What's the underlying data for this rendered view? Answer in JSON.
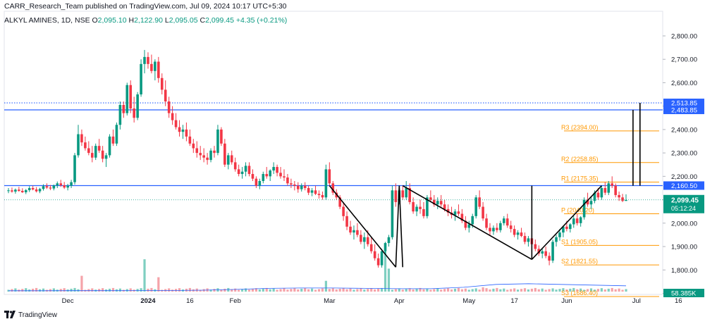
{
  "header": {
    "published": "CARR_Research_Team published on TradingView.com, Jul 09, 2024 10:17 UTC+5:30",
    "symbol": "ALKYL AMINES, 1D, NSE",
    "ohlc": [
      {
        "k": "O",
        "v": "2,095.10"
      },
      {
        "k": "H",
        "v": "2,122.90"
      },
      {
        "k": "L",
        "v": "2,095.05"
      },
      {
        "k": "C",
        "v": "2,099.45"
      }
    ],
    "change": "+4.35 (+0.21%)"
  },
  "footer": {
    "brand": "TradingView"
  },
  "colors": {
    "up": "#089981",
    "down": "#f23645",
    "level": "#2962ff",
    "pivot": "#ff9800",
    "volume_ma": "#2962ff",
    "vol_up": "#7fcfc1",
    "vol_down": "#f5a3a9"
  },
  "chart_data": {
    "type": "candlestick",
    "ylim": [
      1610,
      2830
    ],
    "y_ticks": [
      "2,800.00",
      "2,700.00",
      "2,600.00",
      "2,500.00",
      "2,400.00",
      "2,300.00",
      "2,200.00",
      "2,100.00",
      "2,000.00",
      "1,900.00",
      "1,800.00",
      "1,700.00"
    ],
    "y_tick_values": [
      2800,
      2700,
      2600,
      2500,
      2400,
      2300,
      2200,
      2100,
      2000,
      1900,
      1800,
      1700
    ],
    "x_ticks": [
      "Dec",
      "2024",
      "16",
      "Feb",
      "Mar",
      "Apr",
      "May",
      "17",
      "Jun",
      "Jul",
      "16"
    ],
    "x_tick_bars": [
      17,
      40,
      52,
      65,
      92,
      112,
      132,
      145,
      160,
      180,
      192
    ],
    "candles": [
      [
        2138,
        2150,
        2128,
        2140
      ],
      [
        2140,
        2152,
        2130,
        2135
      ],
      [
        2135,
        2148,
        2126,
        2143
      ],
      [
        2143,
        2155,
        2134,
        2138
      ],
      [
        2138,
        2149,
        2129,
        2132
      ],
      [
        2132,
        2146,
        2124,
        2141
      ],
      [
        2141,
        2158,
        2133,
        2150
      ],
      [
        2150,
        2160,
        2140,
        2144
      ],
      [
        2144,
        2154,
        2131,
        2136
      ],
      [
        2136,
        2151,
        2128,
        2146
      ],
      [
        2146,
        2166,
        2139,
        2158
      ],
      [
        2158,
        2170,
        2146,
        2152
      ],
      [
        2152,
        2163,
        2141,
        2148
      ],
      [
        2148,
        2165,
        2140,
        2161
      ],
      [
        2161,
        2178,
        2150,
        2170
      ],
      [
        2170,
        2185,
        2155,
        2162
      ],
      [
        2162,
        2176,
        2146,
        2152
      ],
      [
        2152,
        2168,
        2140,
        2160
      ],
      [
        2160,
        2185,
        2150,
        2175
      ],
      [
        2175,
        2300,
        2165,
        2290
      ],
      [
        2290,
        2420,
        2280,
        2380
      ],
      [
        2380,
        2400,
        2330,
        2345
      ],
      [
        2345,
        2370,
        2310,
        2320
      ],
      [
        2320,
        2350,
        2290,
        2300
      ],
      [
        2300,
        2330,
        2260,
        2280
      ],
      [
        2280,
        2340,
        2270,
        2330
      ],
      [
        2330,
        2360,
        2300,
        2310
      ],
      [
        2310,
        2330,
        2260,
        2275
      ],
      [
        2275,
        2300,
        2240,
        2290
      ],
      [
        2290,
        2380,
        2280,
        2370
      ],
      [
        2370,
        2400,
        2330,
        2340
      ],
      [
        2340,
        2430,
        2330,
        2420
      ],
      [
        2420,
        2520,
        2400,
        2505
      ],
      [
        2505,
        2520,
        2450,
        2470
      ],
      [
        2470,
        2600,
        2460,
        2590
      ],
      [
        2590,
        2610,
        2470,
        2490
      ],
      [
        2490,
        2540,
        2430,
        2450
      ],
      [
        2450,
        2560,
        2440,
        2550
      ],
      [
        2550,
        2700,
        2540,
        2680
      ],
      [
        2680,
        2740,
        2640,
        2710
      ],
      [
        2710,
        2730,
        2660,
        2680
      ],
      [
        2680,
        2720,
        2640,
        2650
      ],
      [
        2650,
        2700,
        2610,
        2690
      ],
      [
        2690,
        2710,
        2600,
        2620
      ],
      [
        2620,
        2640,
        2550,
        2570
      ],
      [
        2570,
        2610,
        2500,
        2520
      ],
      [
        2520,
        2540,
        2450,
        2470
      ],
      [
        2470,
        2500,
        2420,
        2440
      ],
      [
        2440,
        2470,
        2400,
        2410
      ],
      [
        2410,
        2440,
        2370,
        2390
      ],
      [
        2390,
        2420,
        2360,
        2400
      ],
      [
        2400,
        2430,
        2350,
        2370
      ],
      [
        2370,
        2400,
        2330,
        2340
      ],
      [
        2340,
        2360,
        2300,
        2320
      ],
      [
        2320,
        2350,
        2280,
        2300
      ],
      [
        2300,
        2330,
        2270,
        2290
      ],
      [
        2290,
        2320,
        2260,
        2280
      ],
      [
        2280,
        2300,
        2250,
        2270
      ],
      [
        2270,
        2320,
        2260,
        2310
      ],
      [
        2310,
        2330,
        2280,
        2300
      ],
      [
        2300,
        2420,
        2290,
        2400
      ],
      [
        2400,
        2410,
        2330,
        2340
      ],
      [
        2340,
        2360,
        2240,
        2250
      ],
      [
        2250,
        2300,
        2230,
        2290
      ],
      [
        2290,
        2310,
        2250,
        2260
      ],
      [
        2260,
        2280,
        2220,
        2230
      ],
      [
        2230,
        2250,
        2200,
        2210
      ],
      [
        2210,
        2240,
        2190,
        2220
      ],
      [
        2220,
        2260,
        2200,
        2245
      ],
      [
        2245,
        2260,
        2200,
        2210
      ],
      [
        2210,
        2230,
        2180,
        2190
      ],
      [
        2190,
        2200,
        2150,
        2160
      ],
      [
        2160,
        2190,
        2145,
        2180
      ],
      [
        2180,
        2220,
        2170,
        2210
      ],
      [
        2210,
        2240,
        2190,
        2200
      ],
      [
        2200,
        2230,
        2180,
        2225
      ],
      [
        2225,
        2260,
        2210,
        2240
      ],
      [
        2240,
        2250,
        2200,
        2215
      ],
      [
        2215,
        2240,
        2190,
        2200
      ],
      [
        2200,
        2230,
        2180,
        2195
      ],
      [
        2195,
        2210,
        2160,
        2170
      ],
      [
        2170,
        2190,
        2150,
        2165
      ],
      [
        2165,
        2180,
        2140,
        2160
      ],
      [
        2160,
        2175,
        2130,
        2145
      ],
      [
        2145,
        2170,
        2135,
        2160
      ],
      [
        2160,
        2175,
        2140,
        2150
      ],
      [
        2150,
        2160,
        2120,
        2130
      ],
      [
        2130,
        2150,
        2115,
        2140
      ],
      [
        2140,
        2160,
        2120,
        2125
      ],
      [
        2125,
        2140,
        2105,
        2120
      ],
      [
        2120,
        2135,
        2100,
        2110
      ],
      [
        2110,
        2250,
        2100,
        2230
      ],
      [
        2230,
        2260,
        2160,
        2170
      ],
      [
        2170,
        2180,
        2120,
        2130
      ],
      [
        2130,
        2145,
        2100,
        2110
      ],
      [
        2110,
        2120,
        2060,
        2070
      ],
      [
        2070,
        2090,
        2010,
        2030
      ],
      [
        2030,
        2050,
        1970,
        1985
      ],
      [
        1985,
        2010,
        1950,
        1960
      ],
      [
        1960,
        1990,
        1930,
        1970
      ],
      [
        1970,
        2000,
        1940,
        1950
      ],
      [
        1950,
        1970,
        1910,
        1920
      ],
      [
        1920,
        1960,
        1890,
        1940
      ],
      [
        1940,
        1970,
        1900,
        1910
      ],
      [
        1910,
        1940,
        1870,
        1880
      ],
      [
        1880,
        1910,
        1840,
        1850
      ],
      [
        1850,
        1870,
        1810,
        1820
      ],
      [
        1820,
        1890,
        1810,
        1880
      ],
      [
        1880,
        1920,
        1870,
        1915
      ],
      [
        1915,
        1950,
        1900,
        1940
      ],
      [
        1940,
        2160,
        1930,
        2140
      ],
      [
        2140,
        2170,
        2070,
        2090
      ],
      [
        2090,
        2150,
        2080,
        2140
      ],
      [
        2140,
        2160,
        2100,
        2110
      ],
      [
        2110,
        2180,
        2100,
        2150
      ],
      [
        2150,
        2170,
        2080,
        2090
      ],
      [
        2090,
        2110,
        2040,
        2050
      ],
      [
        2050,
        2080,
        2030,
        2070
      ],
      [
        2070,
        2100,
        2040,
        2060
      ],
      [
        2060,
        2090,
        2020,
        2030
      ],
      [
        2030,
        2120,
        2020,
        2110
      ],
      [
        2110,
        2140,
        2090,
        2100
      ],
      [
        2100,
        2120,
        2070,
        2080
      ],
      [
        2080,
        2110,
        2060,
        2095
      ],
      [
        2095,
        2120,
        2070,
        2080
      ],
      [
        2080,
        2100,
        2050,
        2060
      ],
      [
        2060,
        2080,
        2030,
        2045
      ],
      [
        2045,
        2070,
        2020,
        2035
      ],
      [
        2035,
        2060,
        2010,
        2050
      ],
      [
        2050,
        2080,
        2030,
        2040
      ],
      [
        2040,
        2060,
        2000,
        2010
      ],
      [
        2010,
        2030,
        1970,
        1980
      ],
      [
        1980,
        2010,
        1960,
        1995
      ],
      [
        1995,
        2040,
        1980,
        2030
      ],
      [
        2030,
        2120,
        2020,
        2110
      ],
      [
        2110,
        2140,
        2060,
        2070
      ],
      [
        2070,
        2090,
        2010,
        2020
      ],
      [
        2020,
        2040,
        1970,
        1980
      ],
      [
        1980,
        2000,
        1950,
        1965
      ],
      [
        1965,
        1990,
        1950,
        1980
      ],
      [
        1980,
        2000,
        1960,
        1970
      ],
      [
        1970,
        2010,
        1960,
        2000
      ],
      [
        2000,
        2030,
        1990,
        2020
      ],
      [
        2020,
        2040,
        1980,
        1990
      ],
      [
        1990,
        2010,
        1960,
        1975
      ],
      [
        1975,
        1990,
        1940,
        1950
      ],
      [
        1950,
        1970,
        1930,
        1960
      ],
      [
        1960,
        1980,
        1940,
        1945
      ],
      [
        1945,
        1960,
        1910,
        1920
      ],
      [
        1920,
        1945,
        1900,
        1935
      ],
      [
        1935,
        1950,
        1900,
        1910
      ],
      [
        1910,
        1930,
        1880,
        1890
      ],
      [
        1890,
        1905,
        1860,
        1870
      ],
      [
        1870,
        1895,
        1850,
        1880
      ],
      [
        1880,
        1900,
        1850,
        1860
      ],
      [
        1860,
        1875,
        1820,
        1840
      ],
      [
        1840,
        1930,
        1830,
        1920
      ],
      [
        1920,
        1950,
        1900,
        1940
      ],
      [
        1940,
        1975,
        1925,
        1960
      ],
      [
        1960,
        1990,
        1940,
        1985
      ],
      [
        1985,
        2010,
        1965,
        1975
      ],
      [
        1975,
        2000,
        1960,
        1995
      ],
      [
        1995,
        2030,
        1980,
        2020
      ],
      [
        2020,
        2040,
        1990,
        2000
      ],
      [
        2000,
        2030,
        1985,
        2025
      ],
      [
        2025,
        2110,
        2015,
        2100
      ],
      [
        2100,
        2130,
        2070,
        2080
      ],
      [
        2080,
        2110,
        2060,
        2095
      ],
      [
        2095,
        2140,
        2085,
        2130
      ],
      [
        2130,
        2150,
        2100,
        2110
      ],
      [
        2110,
        2160,
        2100,
        2150
      ],
      [
        2150,
        2175,
        2120,
        2130
      ],
      [
        2130,
        2180,
        2120,
        2170
      ],
      [
        2170,
        2200,
        2150,
        2160
      ],
      [
        2160,
        2170,
        2110,
        2120
      ],
      [
        2120,
        2135,
        2095,
        2110
      ],
      [
        2110,
        2125,
        2090,
        2095
      ],
      [
        2095,
        2123,
        2095,
        2099
      ]
    ],
    "volume_ma": [
      0.012,
      0.012,
      0.013,
      0.013,
      0.014,
      0.015,
      0.02,
      0.03,
      0.045,
      0.05,
      0.05,
      0.045,
      0.04,
      0.04,
      0.06,
      0.1,
      0.11,
      0.1,
      0.09,
      0.08
    ],
    "volume_spikes": [
      [
        21,
        0.22
      ],
      [
        39,
        0.45
      ],
      [
        43,
        0.2
      ],
      [
        91,
        0.15
      ],
      [
        108,
        0.56
      ],
      [
        109,
        0.32
      ],
      [
        136,
        0.06
      ],
      [
        181,
        0.05
      ]
    ],
    "levels": [
      {
        "label": "2,513.85",
        "value": 2513.85,
        "style": "dotted",
        "color": "#2962ff"
      },
      {
        "label": "2,483.85",
        "value": 2483.85,
        "style": "solid",
        "color": "#2962ff"
      },
      {
        "label": "2,160.50",
        "value": 2160.5,
        "style": "solid",
        "color": "#2962ff"
      }
    ],
    "last_price": {
      "label": "2,099.45",
      "countdown": "05:12:24",
      "value": 2099.45
    },
    "volume_label": "58.385K",
    "pivots": [
      {
        "label": "R3 (2394.00)",
        "value": 2394.0
      },
      {
        "label": "R2 (2258.85)",
        "value": 2258.85
      },
      {
        "label": "R1 (2175.35)",
        "value": 2175.35
      },
      {
        "label": "P (2040.20)",
        "value": 2040.2
      },
      {
        "label": "S1 (1905.05)",
        "value": 1905.05
      },
      {
        "label": "S2 (1821.55)",
        "value": 1821.55
      },
      {
        "label": "S3 (1686.40)",
        "value": 1686.4
      }
    ],
    "pattern_lines": [
      [
        [
          92,
          2160
        ],
        [
          111,
          1812
        ]
      ],
      [
        [
          111,
          1812
        ],
        [
          112,
          2160
        ]
      ],
      [
        [
          112,
          2160
        ],
        [
          113,
          1812
        ]
      ],
      [
        [
          113,
          2160
        ],
        [
          150,
          1845
        ]
      ],
      [
        [
          150,
          1845
        ],
        [
          170,
          2160
        ]
      ],
      [
        [
          150,
          2160
        ],
        [
          150,
          1845
        ]
      ],
      [
        [
          179,
          2160
        ],
        [
          179,
          2483.85
        ]
      ],
      [
        [
          181,
          2160
        ],
        [
          181,
          2513.85
        ]
      ]
    ]
  }
}
